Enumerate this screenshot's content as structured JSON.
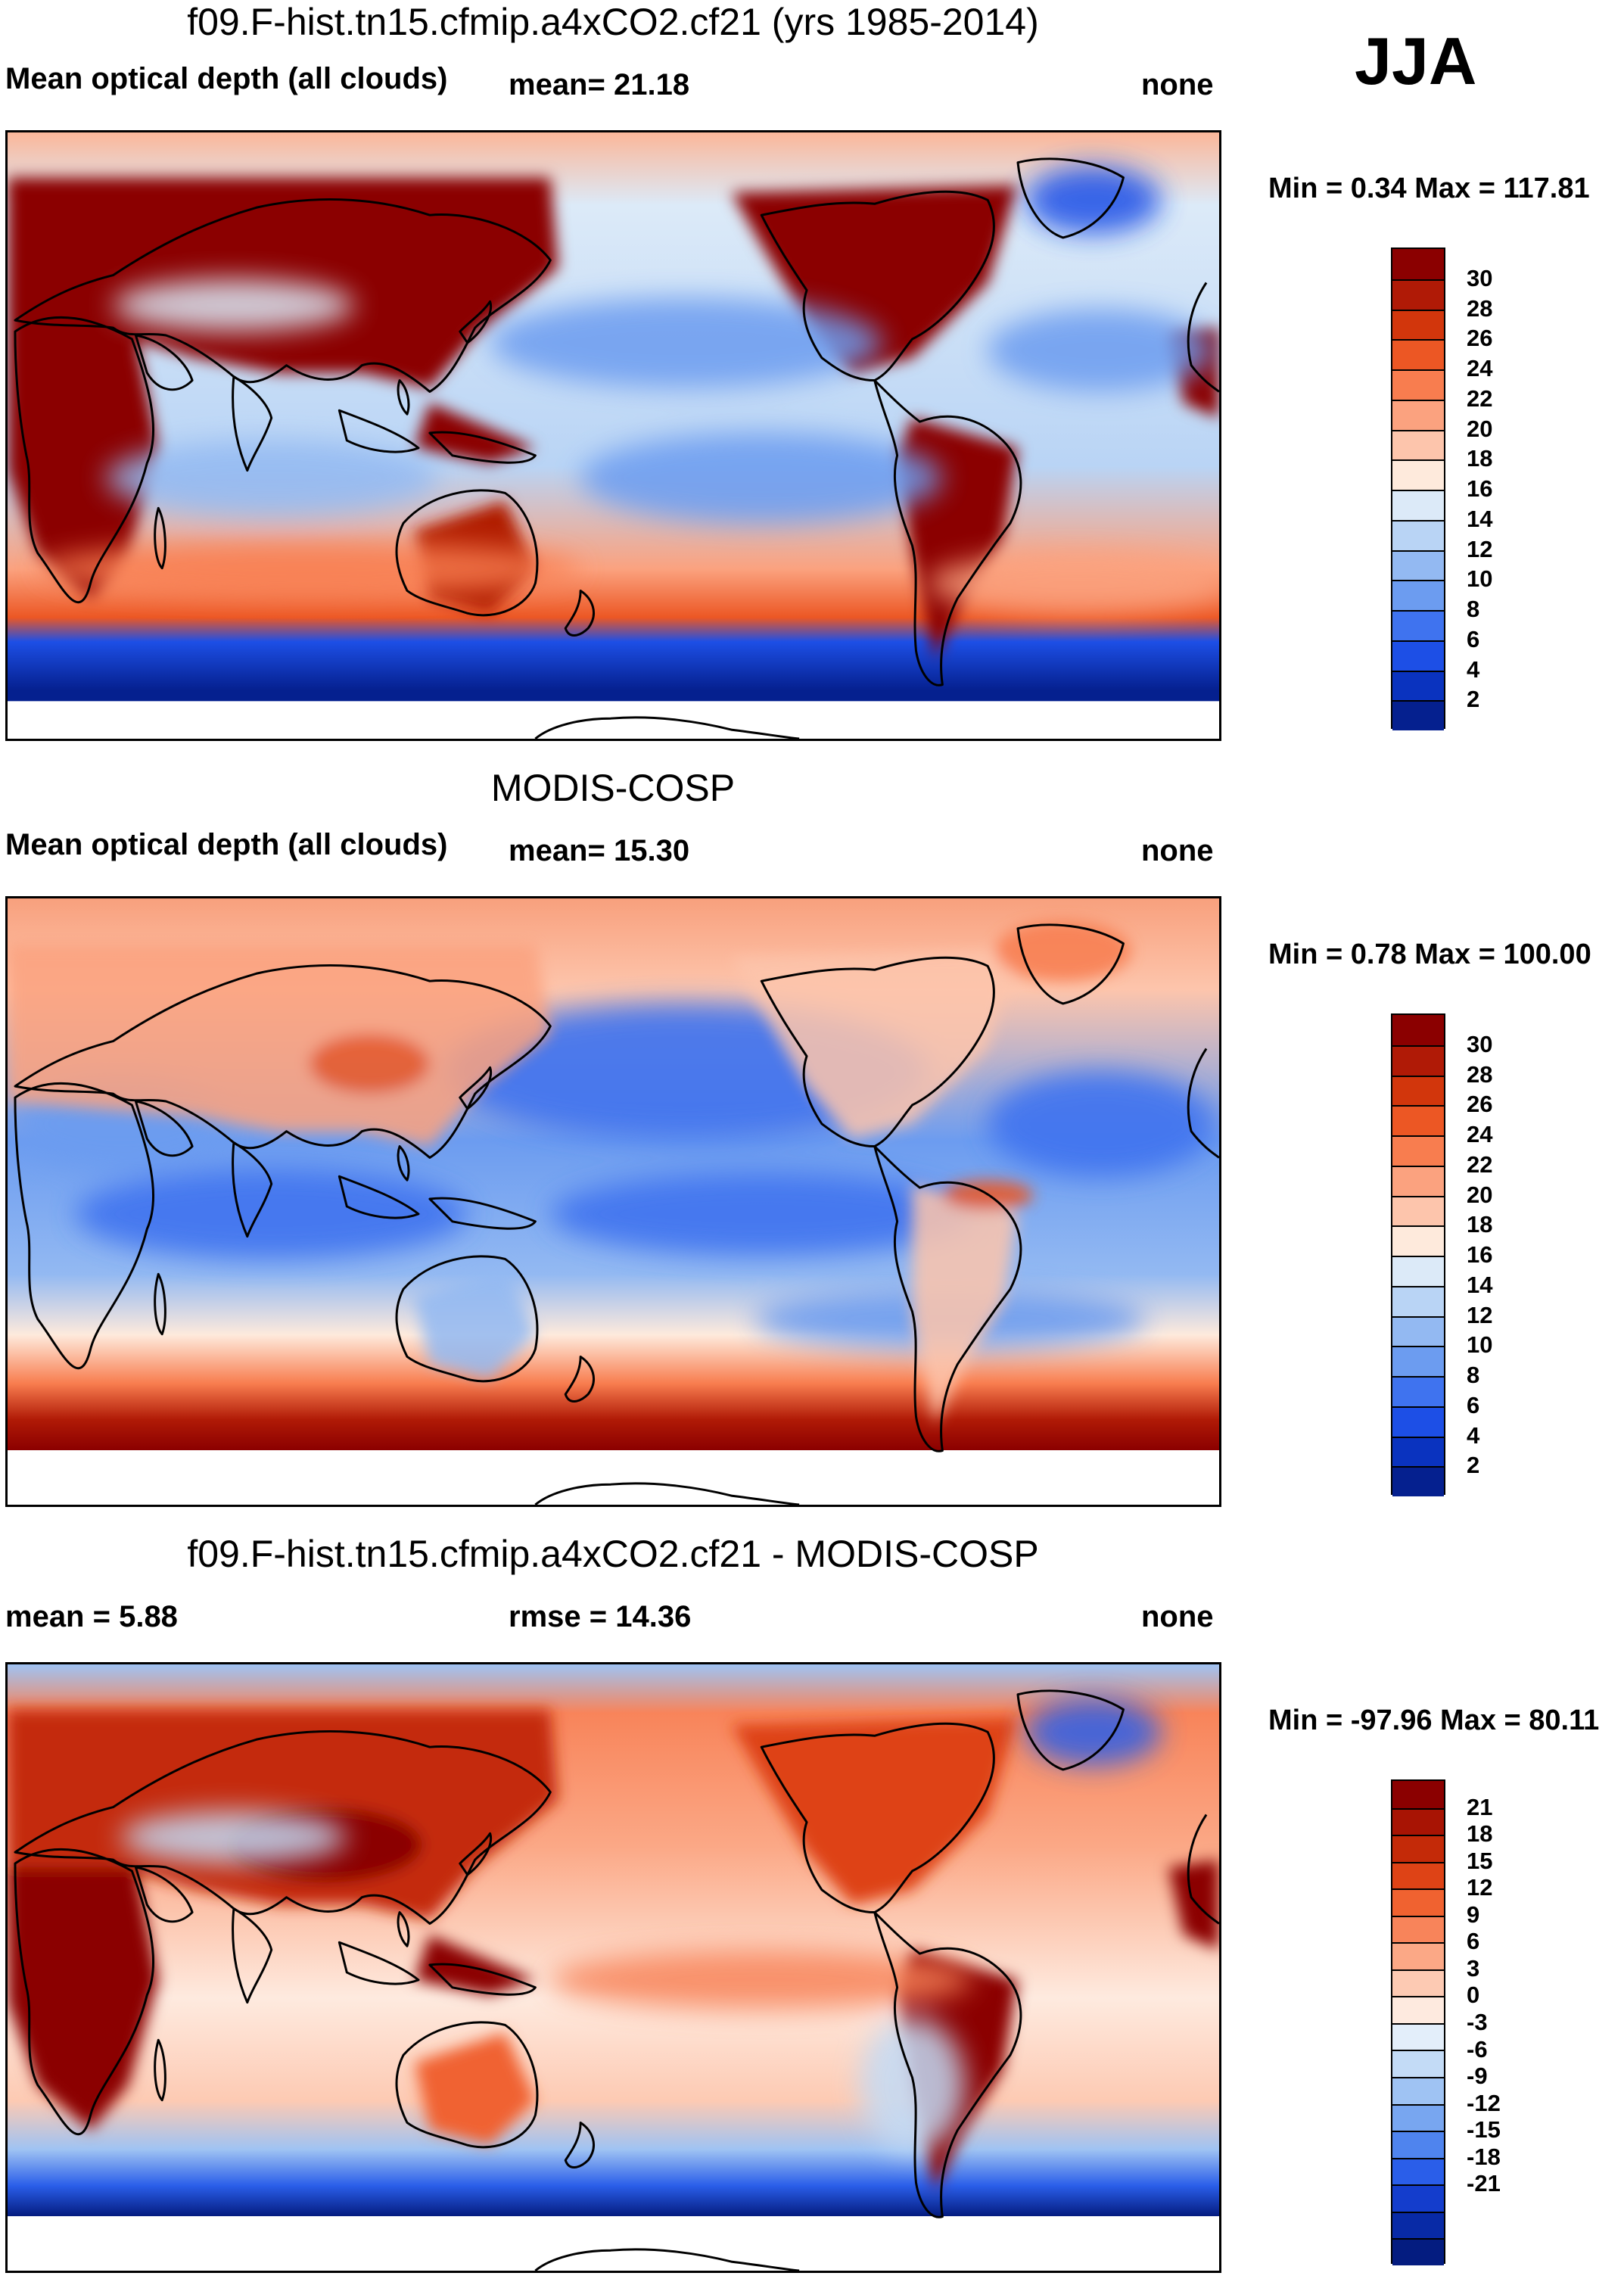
{
  "season": "JJA",
  "panels": [
    {
      "id": "model",
      "title": "f09.F-hist.tn15.cfmip.a4xCO2.cf21 (yrs 1985-2014)",
      "left_label": "Mean optical depth (all clouds)",
      "mid_label": "mean=  21.18",
      "right_label": "none",
      "minmax": "Min =   0.34 Max = 117.81",
      "colorbar": {
        "colors": [
          "#8b0000",
          "#b01a06",
          "#d2360c",
          "#ec5724",
          "#f87d4f",
          "#fba27f",
          "#fdc5ac",
          "#feeadc",
          "#dceaf8",
          "#b9d4f5",
          "#93b9f2",
          "#6c9cf0",
          "#3f73ef",
          "#1d4fe6",
          "#0a33bf",
          "#05208f"
        ],
        "labels": [
          "30",
          "28",
          "26",
          "24",
          "22",
          "20",
          "18",
          "16",
          "14",
          "12",
          "10",
          "8",
          "6",
          "4",
          "2"
        ]
      }
    },
    {
      "id": "obs",
      "title": "MODIS-COSP",
      "left_label": "Mean optical depth (all clouds)",
      "mid_label": "mean=  15.30",
      "right_label": "none",
      "minmax": "Min =   0.78 Max = 100.00",
      "colorbar": {
        "colors": [
          "#8b0000",
          "#b01a06",
          "#d2360c",
          "#ec5724",
          "#f87d4f",
          "#fba27f",
          "#fdc5ac",
          "#feeadc",
          "#dceaf8",
          "#b9d4f5",
          "#93b9f2",
          "#6c9cf0",
          "#3f73ef",
          "#1d4fe6",
          "#0a33bf",
          "#05208f"
        ],
        "labels": [
          "30",
          "28",
          "26",
          "24",
          "22",
          "20",
          "18",
          "16",
          "14",
          "12",
          "10",
          "8",
          "6",
          "4",
          "2"
        ]
      }
    },
    {
      "id": "diff",
      "title": "f09.F-hist.tn15.cfmip.a4xCO2.cf21 - MODIS-COSP",
      "left_label": "mean =    5.88",
      "mid_label": "rmse =  14.36",
      "right_label": "none",
      "minmax": "Min = -97.96 Max =  80.11",
      "colorbar": {
        "colors": [
          "#8b0000",
          "#a81404",
          "#c42a08",
          "#de4316",
          "#f06230",
          "#f8845a",
          "#fba886",
          "#fdcab3",
          "#feeadf",
          "#e3eefa",
          "#c3dbf6",
          "#9fc3f3",
          "#78a6f0",
          "#4f84ee",
          "#2a5ee9",
          "#143dcc",
          "#082aa6",
          "#041c80"
        ],
        "labels": [
          "21",
          "18",
          "15",
          "12",
          "9",
          "6",
          "3",
          "0",
          "-3",
          "-6",
          "-9",
          "-12",
          "-15",
          "-18",
          "-21"
        ]
      }
    }
  ]
}
